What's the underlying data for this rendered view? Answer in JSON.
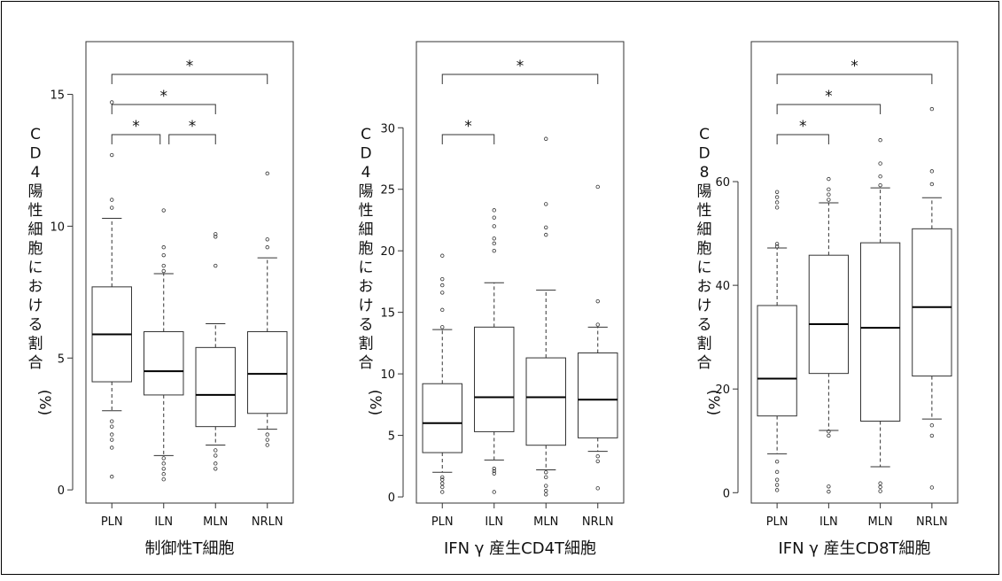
{
  "figure": {
    "frame": true
  },
  "chart_data": [
    {
      "type": "box",
      "xlabel": "制御性T細胞",
      "ylabel_chars": [
        "C",
        "D",
        "4",
        "陽",
        "性",
        "細",
        "胞",
        "に",
        "お",
        "け",
        "る",
        "割",
        "合",
        "(%)"
      ],
      "ylim": [
        -0.5,
        17
      ],
      "yticks": [
        0,
        5,
        10,
        15
      ],
      "categories": [
        "PLN",
        "ILN",
        "MLN",
        "NRLN"
      ],
      "boxes": [
        {
          "whisker_low": 3.0,
          "q1": 4.1,
          "median": 5.9,
          "q3": 7.7,
          "whisker_high": 10.3,
          "outliers": [
            0.5,
            1.6,
            1.9,
            2.1,
            2.4,
            2.6,
            10.7,
            11.0,
            12.7,
            14.7
          ]
        },
        {
          "whisker_low": 1.3,
          "q1": 3.6,
          "median": 4.5,
          "q3": 6.0,
          "whisker_high": 8.2,
          "outliers": [
            0.4,
            0.6,
            0.8,
            1.0,
            1.2,
            8.3,
            8.5,
            8.9,
            9.2,
            10.6
          ]
        },
        {
          "whisker_low": 1.7,
          "q1": 2.4,
          "median": 3.6,
          "q3": 5.4,
          "whisker_high": 6.3,
          "outliers": [
            0.8,
            1.0,
            1.3,
            1.5,
            8.5,
            9.6,
            9.7
          ]
        },
        {
          "whisker_low": 2.3,
          "q1": 2.9,
          "median": 4.4,
          "q3": 6.0,
          "whisker_high": 8.8,
          "outliers": [
            1.7,
            1.9,
            2.1,
            9.2,
            9.5,
            12.0
          ]
        }
      ],
      "significance": [
        {
          "from": 0,
          "to": 1,
          "label": "*"
        },
        {
          "from": 1,
          "to": 2,
          "label": "*"
        },
        {
          "from": 0,
          "to": 2,
          "label": "*"
        },
        {
          "from": 0,
          "to": 3,
          "label": "*"
        }
      ]
    },
    {
      "type": "box",
      "xlabel": "IFN γ 産生CD4T細胞",
      "ylabel_chars": [
        "C",
        "D",
        "4",
        "陽",
        "性",
        "細",
        "胞",
        "に",
        "お",
        "け",
        "る",
        "割",
        "合",
        "(%)"
      ],
      "ylim": [
        -0.5,
        37
      ],
      "yticks": [
        0,
        5,
        10,
        15,
        20,
        25,
        30
      ],
      "categories": [
        "PLN",
        "ILN",
        "MLN",
        "NRLN"
      ],
      "boxes": [
        {
          "whisker_low": 2.0,
          "q1": 3.6,
          "median": 6.0,
          "q3": 9.2,
          "whisker_high": 13.6,
          "outliers": [
            0.4,
            0.8,
            1.1,
            1.4,
            1.6,
            13.8,
            15.2,
            16.6,
            17.2,
            17.7,
            19.6
          ]
        },
        {
          "whisker_low": 3.0,
          "q1": 5.3,
          "median": 8.1,
          "q3": 13.8,
          "whisker_high": 17.4,
          "outliers": [
            0.4,
            1.9,
            2.1,
            2.3,
            20.0,
            20.6,
            21.0,
            22.0,
            22.7,
            23.3
          ]
        },
        {
          "whisker_low": 2.2,
          "q1": 4.2,
          "median": 8.1,
          "q3": 11.3,
          "whisker_high": 16.8,
          "outliers": [
            0.2,
            0.5,
            0.9,
            1.6,
            2.0,
            21.3,
            21.9,
            23.8,
            29.1
          ]
        },
        {
          "whisker_low": 3.7,
          "q1": 4.8,
          "median": 7.9,
          "q3": 11.7,
          "whisker_high": 13.8,
          "outliers": [
            0.7,
            2.9,
            3.3,
            14.0,
            15.9,
            25.2
          ]
        }
      ],
      "significance": [
        {
          "from": 0,
          "to": 1,
          "label": "*"
        },
        {
          "from": 0,
          "to": 3,
          "label": "*"
        }
      ]
    },
    {
      "type": "box",
      "xlabel": "IFN γ 産生CD8T細胞",
      "ylabel_chars": [
        "C",
        "D",
        "8",
        "陽",
        "性",
        "細",
        "胞",
        "に",
        "お",
        "け",
        "る",
        "割",
        "合",
        "(%)"
      ],
      "ylim": [
        -2,
        87
      ],
      "yticks": [
        0,
        20,
        40,
        60
      ],
      "categories": [
        "PLN",
        "ILN",
        "MLN",
        "NRLN"
      ],
      "boxes": [
        {
          "whisker_low": 7.5,
          "q1": 14.8,
          "median": 22.0,
          "q3": 36.1,
          "whisker_high": 47.2,
          "outliers": [
            0.5,
            1.5,
            2.5,
            4.0,
            6.0,
            47.5,
            48.0,
            55.0,
            56.0,
            57.0,
            58.0
          ]
        },
        {
          "whisker_low": 12.0,
          "q1": 23.0,
          "median": 32.5,
          "q3": 45.8,
          "whisker_high": 55.9,
          "outliers": [
            0.2,
            1.2,
            11.0,
            11.8,
            56.5,
            57.5,
            58.5,
            60.5
          ]
        },
        {
          "whisker_low": 5.0,
          "q1": 13.8,
          "median": 31.8,
          "q3": 48.2,
          "whisker_high": 58.8,
          "outliers": [
            0.3,
            1.1,
            1.8,
            59.3,
            61.0,
            63.5,
            68.0
          ]
        },
        {
          "whisker_low": 14.2,
          "q1": 22.5,
          "median": 35.8,
          "q3": 50.9,
          "whisker_high": 56.9,
          "outliers": [
            1.0,
            11.0,
            13.0,
            59.5,
            62.0,
            74.0
          ]
        }
      ],
      "significance": [
        {
          "from": 0,
          "to": 1,
          "label": "*"
        },
        {
          "from": 0,
          "to": 2,
          "label": "*"
        },
        {
          "from": 0,
          "to": 3,
          "label": "*"
        }
      ]
    }
  ]
}
